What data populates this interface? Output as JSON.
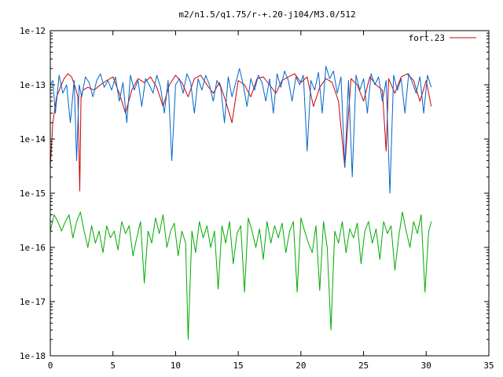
{
  "chart_data": {
    "type": "line",
    "title": "m2/n1.5/q1.75/r-+.20-j104/M3.0/512",
    "xlabel": "",
    "ylabel": "",
    "xlim": [
      0,
      35
    ],
    "ylim": [
      1e-18,
      1e-12
    ],
    "yscale": "log",
    "grid": false,
    "legend": "top-right",
    "x_ticks": [
      0,
      5,
      10,
      15,
      20,
      25,
      30,
      35
    ],
    "x_tick_labels": [
      "0",
      "5",
      "10",
      "15",
      "20",
      "25",
      "30",
      "35"
    ],
    "y_ticks": [
      1e-18,
      1e-17,
      1e-16,
      1e-15,
      1e-14,
      1e-13,
      1e-12
    ],
    "y_tick_labels": [
      "1e-18",
      "1e-17",
      "1e-16",
      "1e-15",
      "1e-14",
      "1e-13",
      "1e-12"
    ],
    "series": [
      {
        "name": "fort.23",
        "color": "#cc0000",
        "x": [
          0,
          0.2,
          0.5,
          0.8,
          1.1,
          1.4,
          1.7,
          2.0,
          2.2,
          2.35,
          2.45,
          2.6,
          3.0,
          3.5,
          4.0,
          4.5,
          5.0,
          5.5,
          6.0,
          6.5,
          7.0,
          7.5,
          8.0,
          8.5,
          9.0,
          9.5,
          10.0,
          10.5,
          11.0,
          11.5,
          12.0,
          12.5,
          13.0,
          13.5,
          14.0,
          14.5,
          15.0,
          15.5,
          16.0,
          16.5,
          17.0,
          17.5,
          18.0,
          18.5,
          19.0,
          19.5,
          20.0,
          20.5,
          21.0,
          21.5,
          22.0,
          22.5,
          23.0,
          23.5,
          24.0,
          24.5,
          25.0,
          25.5,
          26.0,
          26.5,
          26.8,
          27.0,
          27.5,
          28.0,
          28.5,
          29.0,
          29.5,
          30.0,
          30.4
        ],
        "y": [
          3e-15,
          2e-14,
          6e-14,
          9e-14,
          1.3e-13,
          1.6e-13,
          1.4e-13,
          9e-14,
          6e-14,
          1.1e-15,
          6e-14,
          8e-14,
          9e-14,
          8e-14,
          1e-13,
          1.2e-13,
          1.4e-13,
          7e-14,
          3e-14,
          8e-14,
          1.3e-13,
          1.1e-13,
          1.4e-13,
          9e-14,
          4e-14,
          1e-13,
          1.5e-13,
          1.1e-13,
          6e-14,
          1.3e-13,
          1.5e-13,
          1e-13,
          7e-14,
          1.1e-13,
          5e-14,
          2e-14,
          1.2e-13,
          1e-13,
          6e-14,
          1.3e-13,
          1.4e-13,
          1e-13,
          7e-14,
          1.2e-13,
          1.4e-13,
          1.6e-13,
          1.1e-13,
          1.4e-13,
          4e-14,
          9e-14,
          1.3e-13,
          1.1e-13,
          5e-14,
          3e-15,
          1.3e-13,
          1e-13,
          5e-14,
          1.4e-13,
          1e-13,
          8e-14,
          6e-15,
          1.3e-13,
          7e-14,
          1.4e-13,
          1.6e-13,
          1.2e-13,
          5e-14,
          1.2e-13,
          4e-14
        ]
      },
      {
        "color": "#0066cc",
        "x": [
          0,
          0.2,
          0.4,
          0.7,
          1.0,
          1.3,
          1.6,
          1.9,
          2.1,
          2.3,
          2.5,
          2.8,
          3.1,
          3.4,
          3.7,
          4.0,
          4.3,
          4.6,
          4.9,
          5.2,
          5.5,
          5.8,
          6.1,
          6.4,
          6.7,
          7.0,
          7.3,
          7.6,
          7.9,
          8.2,
          8.5,
          8.8,
          9.1,
          9.4,
          9.7,
          10.0,
          10.3,
          10.6,
          10.9,
          11.2,
          11.5,
          11.8,
          12.1,
          12.4,
          12.7,
          13.0,
          13.3,
          13.6,
          13.9,
          14.2,
          14.5,
          14.8,
          15.1,
          15.4,
          15.7,
          16.0,
          16.3,
          16.6,
          16.9,
          17.2,
          17.5,
          17.8,
          18.1,
          18.4,
          18.7,
          19.0,
          19.3,
          19.6,
          19.9,
          20.2,
          20.5,
          20.8,
          21.1,
          21.4,
          21.7,
          22.0,
          22.3,
          22.6,
          22.9,
          23.2,
          23.5,
          23.8,
          24.1,
          24.4,
          24.7,
          25.0,
          25.3,
          25.6,
          25.9,
          26.2,
          26.5,
          26.8,
          27.1,
          27.4,
          27.7,
          28.0,
          28.3,
          28.6,
          28.9,
          29.2,
          29.5,
          29.8,
          30.1,
          30.4
        ],
        "y": [
          1e-13,
          1.2e-13,
          3e-14,
          1.5e-13,
          7e-14,
          1e-13,
          2e-14,
          1.2e-13,
          4e-15,
          1e-13,
          6e-14,
          1.4e-13,
          1.1e-13,
          6e-14,
          1.2e-13,
          1.6e-13,
          9e-14,
          1.2e-13,
          8e-14,
          1.4e-13,
          5e-14,
          1.1e-13,
          2e-14,
          1.5e-13,
          8e-14,
          1.2e-13,
          4e-14,
          1.3e-13,
          1e-13,
          7e-14,
          1.5e-13,
          9e-14,
          3e-14,
          1.2e-13,
          4e-15,
          1e-13,
          1.3e-13,
          7e-14,
          1.6e-13,
          1.1e-13,
          3e-14,
          1.3e-13,
          8e-14,
          1.5e-13,
          1e-13,
          5e-14,
          1.2e-13,
          9e-14,
          2e-14,
          1.4e-13,
          6e-14,
          1.1e-13,
          2e-13,
          1e-13,
          4e-14,
          1.3e-13,
          8e-14,
          1.5e-13,
          1.1e-13,
          5e-14,
          1.3e-13,
          3e-14,
          1.6e-13,
          9e-14,
          1.8e-13,
          1.2e-13,
          5e-14,
          1.4e-13,
          1e-13,
          1.5e-13,
          6e-15,
          1.2e-13,
          8e-14,
          1.7e-13,
          3e-14,
          2.2e-13,
          1.3e-13,
          1.8e-13,
          7e-14,
          1.4e-13,
          3e-15,
          1.2e-13,
          2e-15,
          1.5e-13,
          8e-14,
          1.3e-13,
          3e-14,
          1.6e-13,
          1e-13,
          1.4e-13,
          5e-14,
          1.2e-13,
          1e-15,
          1.5e-13,
          8e-14,
          1.3e-13,
          3e-14,
          1.6e-13,
          1.1e-13,
          7e-14,
          1.4e-13,
          3e-14,
          1.5e-13,
          9e-14
        ]
      },
      {
        "color": "#00aa00",
        "x": [
          0,
          0.3,
          0.6,
          0.9,
          1.2,
          1.5,
          1.8,
          2.1,
          2.4,
          2.7,
          3.0,
          3.3,
          3.6,
          3.9,
          4.2,
          4.5,
          4.8,
          5.1,
          5.4,
          5.7,
          6.0,
          6.3,
          6.6,
          6.9,
          7.2,
          7.5,
          7.8,
          8.1,
          8.4,
          8.7,
          9.0,
          9.3,
          9.6,
          9.9,
          10.2,
          10.5,
          10.8,
          11.0,
          11.3,
          11.6,
          11.9,
          12.2,
          12.5,
          12.8,
          13.1,
          13.4,
          13.7,
          14.0,
          14.3,
          14.6,
          14.9,
          15.2,
          15.5,
          15.8,
          16.1,
          16.4,
          16.7,
          17.0,
          17.3,
          17.6,
          17.9,
          18.2,
          18.5,
          18.8,
          19.1,
          19.4,
          19.7,
          20.0,
          20.3,
          20.6,
          20.9,
          21.2,
          21.5,
          21.8,
          22.1,
          22.4,
          22.7,
          23.0,
          23.3,
          23.6,
          23.9,
          24.2,
          24.5,
          24.8,
          25.1,
          25.4,
          25.7,
          26.0,
          26.3,
          26.6,
          26.9,
          27.2,
          27.5,
          27.8,
          28.1,
          28.4,
          28.7,
          29.0,
          29.3,
          29.6,
          29.9,
          30.2,
          30.4
        ],
        "y": [
          2e-16,
          4e-16,
          3e-16,
          2e-16,
          3e-16,
          4e-16,
          1.5e-16,
          3e-16,
          4.5e-16,
          2e-16,
          1e-16,
          2.5e-16,
          1.2e-16,
          2e-16,
          8e-17,
          2.5e-16,
          1.5e-16,
          2e-16,
          9e-17,
          3e-16,
          1.8e-16,
          2.5e-16,
          7e-17,
          1.5e-16,
          3e-16,
          2.2e-17,
          2e-16,
          1.2e-16,
          3.5e-16,
          1.8e-16,
          4e-16,
          1e-16,
          2e-16,
          2.8e-16,
          7e-17,
          2e-16,
          1.2e-16,
          2e-18,
          2e-16,
          8e-17,
          3e-16,
          1.5e-16,
          2.5e-16,
          1e-16,
          2e-16,
          1.7e-17,
          2.5e-16,
          1.2e-16,
          3e-16,
          5e-17,
          1.8e-16,
          2.5e-16,
          1.5e-17,
          3.5e-16,
          2e-16,
          1e-16,
          2.2e-16,
          6e-17,
          3e-16,
          1.2e-16,
          2.5e-16,
          1.5e-16,
          2.8e-16,
          8e-17,
          2e-16,
          3e-16,
          1.5e-17,
          3.5e-16,
          2e-16,
          1.2e-16,
          8e-17,
          2.5e-16,
          1.6e-17,
          3e-16,
          1e-16,
          3e-18,
          2e-16,
          1.2e-16,
          3e-16,
          8e-17,
          2.2e-16,
          1.5e-16,
          2.8e-16,
          5e-17,
          2e-16,
          3e-16,
          1.2e-16,
          2.2e-16,
          6e-17,
          3e-16,
          1.8e-16,
          2.5e-16,
          3.8e-17,
          1.5e-16,
          4.5e-16,
          2e-16,
          1e-16,
          3e-16,
          1.8e-16,
          4e-16,
          1.5e-17,
          2e-16,
          3e-16
        ]
      }
    ]
  }
}
